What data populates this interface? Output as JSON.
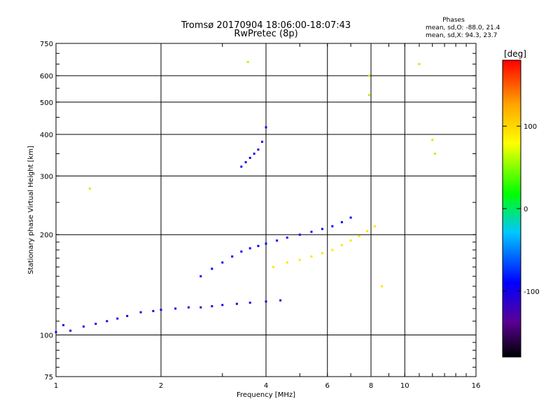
{
  "chart_data": {
    "type": "scatter",
    "title": "Tromsø 20170904 18:06:00-18:07:43",
    "subtitle": "RwPretec (8p)",
    "xlabel": "Frequency [MHz]",
    "ylabel": "Stationary phase Virtual Height [km]",
    "x_scale": "log",
    "y_scale": "log",
    "xlim": [
      1,
      16
    ],
    "ylim": [
      75,
      750
    ],
    "x_ticks": [
      1,
      2,
      4,
      6,
      8,
      10,
      16
    ],
    "x_ticks_labels": [
      "1",
      "2",
      "4",
      "6",
      "8",
      "10",
      "16"
    ],
    "y_ticks": [
      75,
      100,
      200,
      300,
      400,
      500,
      600,
      750
    ],
    "y_ticks_labels": [
      "75",
      "100",
      "200",
      "300",
      "400",
      "500",
      "600",
      "750"
    ],
    "grid": true,
    "phase_info": {
      "heading": "Phases",
      "line_o": "mean, sd,O: -88.0, 21.4",
      "line_x": "mean, sd,X:  94.3, 23.7"
    },
    "colorbar": {
      "label": "[deg]",
      "ticks": [
        100,
        0,
        -100
      ],
      "ticks_labels": [
        "100",
        "0",
        "-100"
      ],
      "range": [
        -180,
        180
      ],
      "colors": [
        "#000000",
        "#5a0096",
        "#0000ff",
        "#00c8ff",
        "#00ff00",
        "#ffff00",
        "#ffa500",
        "#ff0000"
      ]
    },
    "clusters": [
      {
        "id": "E-layer trace",
        "x": [
          1.0,
          1.05,
          1.1,
          1.2,
          1.3,
          1.4,
          1.5,
          1.6,
          1.75,
          1.9,
          2.0,
          2.2,
          2.4,
          2.6,
          2.8,
          3.0,
          3.3,
          3.6,
          4.0,
          4.4
        ],
        "y": [
          102,
          107,
          103,
          106,
          108,
          110,
          112,
          114,
          117,
          118,
          119,
          120,
          121,
          121,
          122,
          123,
          124,
          125,
          126,
          127
        ],
        "phase": -110
      },
      {
        "id": "F-layer O trace",
        "x": [
          2.6,
          2.8,
          3.0,
          3.2,
          3.4,
          3.6,
          3.8,
          4.0,
          4.3,
          4.6,
          5.0,
          5.4,
          5.8,
          6.2,
          6.6,
          7.0
        ],
        "y": [
          150,
          158,
          165,
          172,
          178,
          182,
          185,
          188,
          192,
          196,
          200,
          204,
          208,
          212,
          218,
          225
        ],
        "phase": -100
      },
      {
        "id": "F-layer X trace",
        "x": [
          4.2,
          4.6,
          5.0,
          5.4,
          5.8,
          6.2,
          6.6,
          7.0,
          7.4,
          7.8,
          8.2,
          8.6
        ],
        "y": [
          160,
          165,
          168,
          172,
          176,
          180,
          186,
          192,
          198,
          205,
          212,
          140
        ],
        "phase": 95
      },
      {
        "id": "Spread F cluster",
        "x": [
          3.4,
          3.5,
          3.6,
          3.7,
          3.8,
          3.9,
          4.0
        ],
        "y": [
          320,
          330,
          340,
          350,
          360,
          380,
          420
        ],
        "phase": -105
      },
      {
        "id": "Scattered echoes",
        "x": [
          1.25,
          3.55,
          7.9,
          7.9,
          11.0,
          12.0,
          12.2
        ],
        "y": [
          275,
          660,
          600,
          525,
          650,
          385,
          350
        ],
        "phase": 60
      }
    ]
  }
}
